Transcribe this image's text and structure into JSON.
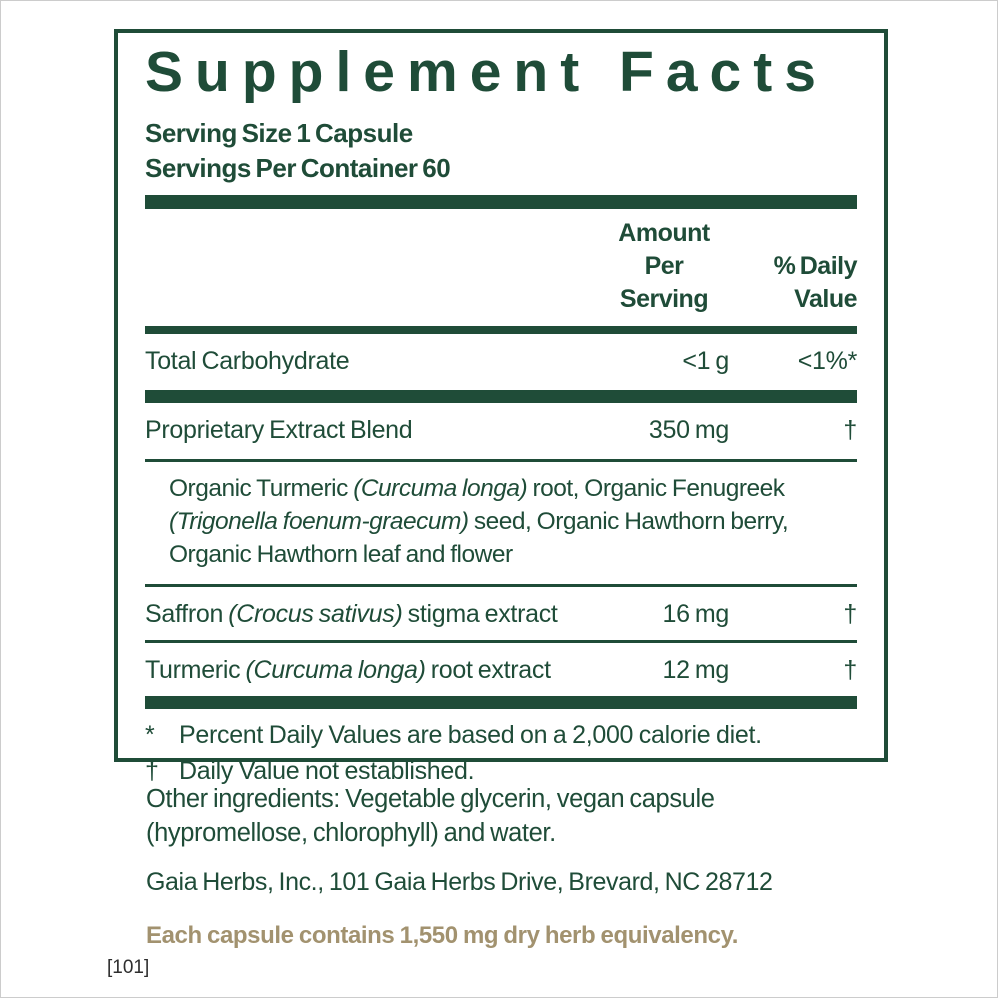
{
  "colors": {
    "green": "#1F4C38",
    "gold": "#A2926F",
    "code_text": "#2E2E2E"
  },
  "panel": {
    "title": "Supplement Facts",
    "serving_size": "Serving Size 1 Capsule",
    "servings_per_container": "Servings Per Container 60",
    "columns": {
      "amount_line1": "Amount",
      "amount_line2": "Per Serving",
      "dv_line1": "% Daily",
      "dv_line2": "Value"
    },
    "rows": [
      {
        "name": [
          {
            "t": "Total Carbohydrate"
          }
        ],
        "amount": "<1 g",
        "dv": "<1%*"
      },
      {
        "name": [
          {
            "t": "Proprietary Extract Blend"
          }
        ],
        "amount": "350 mg",
        "dv": "†"
      },
      {
        "name": [
          {
            "t": "Saffron "
          },
          {
            "t": "(Crocus sativus)",
            "i": true
          },
          {
            "t": " stigma extract"
          }
        ],
        "amount": "16 mg",
        "dv": "†"
      },
      {
        "name": [
          {
            "t": "Turmeric "
          },
          {
            "t": "(Curcuma longa)",
            "i": true
          },
          {
            "t": " root extract"
          }
        ],
        "amount": "12 mg",
        "dv": "†"
      }
    ],
    "blend_lines": [
      [
        {
          "t": "Organic Turmeric "
        },
        {
          "t": "(Curcuma longa)",
          "i": true
        },
        {
          "t": " root, Organic Fenugreek"
        }
      ],
      [
        {
          "t": "(Trigonella foenum-graecum)",
          "i": true
        },
        {
          "t": " seed, Organic Hawthorn berry,"
        }
      ],
      [
        {
          "t": "Organic Hawthorn leaf and flower"
        }
      ]
    ],
    "footnotes": [
      {
        "sym": "*",
        "text": "Percent Daily Values are based on a 2,000 calorie diet."
      },
      {
        "sym": "†",
        "text": "Daily Value not established."
      }
    ]
  },
  "below": {
    "other_ingredients_lines": [
      "Other ingredients: Vegetable glycerin, vegan capsule",
      "(hypromellose, chlorophyll) and water."
    ],
    "address": "Gaia Herbs, Inc., 101 Gaia Herbs Drive, Brevard, NC 28712",
    "equivalency": "Each capsule contains 1,550 mg dry herb equivalency.",
    "footer_code": "[101]"
  }
}
